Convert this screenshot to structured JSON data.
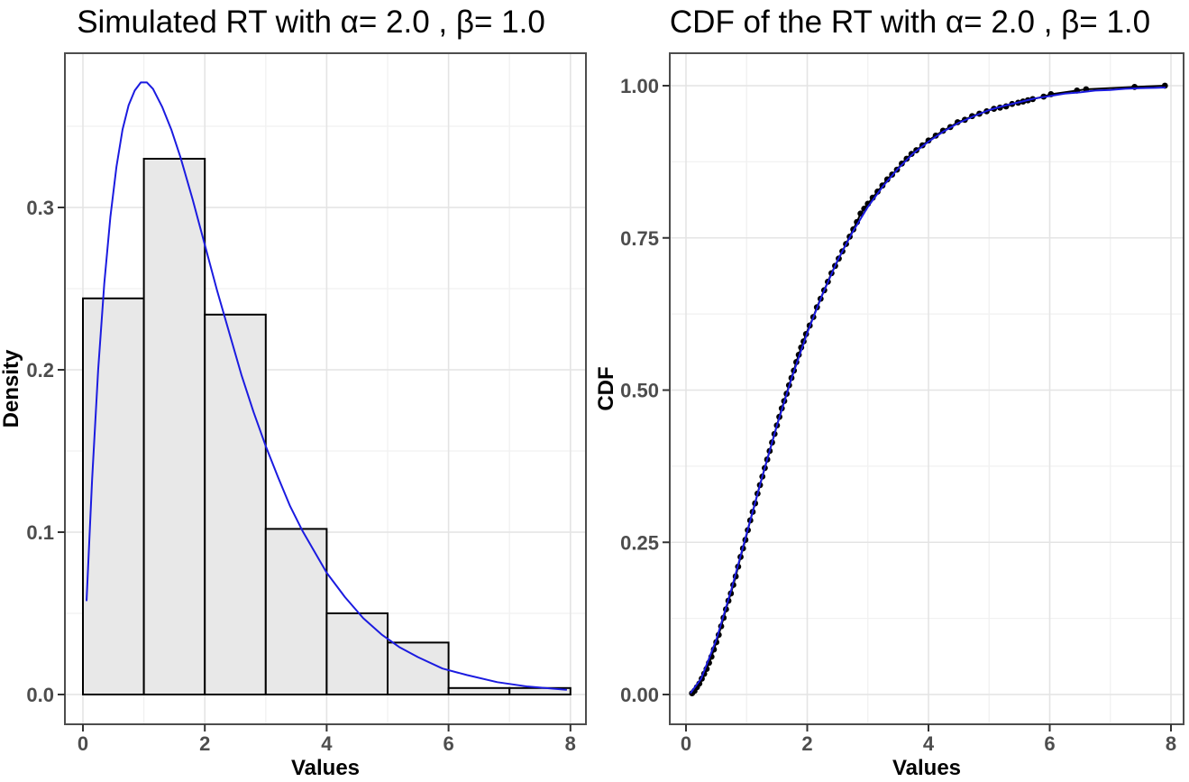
{
  "figure": {
    "kind": "R ggplot side-by-side figure",
    "background": "#ffffff"
  },
  "colors": {
    "curve_blue": "#1b1be0",
    "bar_fill": "#e8e8e8",
    "bar_stroke": "#000000",
    "ecdf_black": "#000000",
    "grid_major": "#e4e4e4",
    "grid_minor": "#f1f1f1",
    "panel_border": "#4d4d4d",
    "panel_bg": "#ffffff",
    "tick_mark": "#333333",
    "tick_label": "#4d4d4d",
    "axis_title": "#000000",
    "title_color": "#000000"
  },
  "chart_data": [
    {
      "type": "bar",
      "subtype": "histogram-with-density-curve",
      "title": "Simulated RT with α= 2.0 , β= 1.0",
      "xlabel": "Values",
      "ylabel": "Density",
      "xlim": [
        0,
        8
      ],
      "ylim": [
        0,
        0.377
      ],
      "x_ticks": [
        0,
        2,
        4,
        6,
        8
      ],
      "x_tick_labels": [
        "0",
        "2",
        "4",
        "6",
        "8"
      ],
      "x_minor": [
        1,
        3,
        5,
        7
      ],
      "y_ticks": [
        0.0,
        0.1,
        0.2,
        0.3
      ],
      "y_tick_labels": [
        "0.0",
        "0.1",
        "0.2",
        "0.3"
      ],
      "y_minor": [
        0.05,
        0.15,
        0.25,
        0.35
      ],
      "grid": true,
      "legend": "none",
      "bins": {
        "start": 0,
        "binwidth": 1,
        "categories": [
          "0-1",
          "1-2",
          "2-3",
          "3-4",
          "4-5",
          "5-6",
          "6-7",
          "7-8"
        ],
        "heights": [
          0.244,
          0.33,
          0.234,
          0.102,
          0.05,
          0.032,
          0.004,
          0.004
        ]
      },
      "density_curve": [
        [
          0.06,
          0.058
        ],
        [
          0.15,
          0.132
        ],
        [
          0.25,
          0.2
        ],
        [
          0.35,
          0.253
        ],
        [
          0.45,
          0.294
        ],
        [
          0.55,
          0.325
        ],
        [
          0.65,
          0.348
        ],
        [
          0.75,
          0.363
        ],
        [
          0.85,
          0.372
        ],
        [
          0.95,
          0.377
        ],
        [
          1.05,
          0.377
        ],
        [
          1.15,
          0.373
        ],
        [
          1.3,
          0.362
        ],
        [
          1.45,
          0.348
        ],
        [
          1.6,
          0.331
        ],
        [
          1.8,
          0.305
        ],
        [
          2.0,
          0.277
        ],
        [
          2.2,
          0.249
        ],
        [
          2.4,
          0.223
        ],
        [
          2.6,
          0.197
        ],
        [
          2.8,
          0.174
        ],
        [
          3.0,
          0.153
        ],
        [
          3.2,
          0.134
        ],
        [
          3.4,
          0.116
        ],
        [
          3.6,
          0.101
        ],
        [
          3.8,
          0.088
        ],
        [
          4.0,
          0.075
        ],
        [
          4.3,
          0.06
        ],
        [
          4.6,
          0.047
        ],
        [
          4.9,
          0.037
        ],
        [
          5.2,
          0.029
        ],
        [
          5.5,
          0.023
        ],
        [
          5.9,
          0.016
        ],
        [
          6.3,
          0.012
        ],
        [
          6.8,
          0.0076
        ],
        [
          7.3,
          0.0049
        ],
        [
          7.93,
          0.0029
        ]
      ]
    },
    {
      "type": "line",
      "subtype": "ecdf-with-theoretical-cdf",
      "title": "CDF of the RT with α= 2.0 , β= 1.0",
      "xlabel": "Values",
      "ylabel": "CDF",
      "xlim": [
        0,
        8
      ],
      "ylim": [
        0,
        1
      ],
      "x_ticks": [
        0,
        2,
        4,
        6,
        8
      ],
      "x_tick_labels": [
        "0",
        "2",
        "4",
        "6",
        "8"
      ],
      "x_minor": [
        1,
        3,
        5,
        7
      ],
      "y_ticks": [
        0.0,
        0.25,
        0.5,
        0.75,
        1.0
      ],
      "y_tick_labels": [
        "0.00",
        "0.25",
        "0.50",
        "0.75",
        "1.00"
      ],
      "y_minor": [
        0.125,
        0.375,
        0.625,
        0.875
      ],
      "grid": true,
      "legend": "none",
      "cdf_curve": [
        [
          0.08,
          0.003
        ],
        [
          0.25,
          0.026
        ],
        [
          0.5,
          0.09
        ],
        [
          0.75,
          0.173
        ],
        [
          1.0,
          0.264
        ],
        [
          1.25,
          0.355
        ],
        [
          1.5,
          0.442
        ],
        [
          1.75,
          0.522
        ],
        [
          2.0,
          0.594
        ],
        [
          2.25,
          0.657
        ],
        [
          2.5,
          0.713
        ],
        [
          2.75,
          0.76
        ],
        [
          3.0,
          0.801
        ],
        [
          3.25,
          0.835
        ],
        [
          3.5,
          0.864
        ],
        [
          3.75,
          0.889
        ],
        [
          4.0,
          0.908
        ],
        [
          4.25,
          0.925
        ],
        [
          4.5,
          0.939
        ],
        [
          4.75,
          0.95
        ],
        [
          5.0,
          0.96
        ],
        [
          5.25,
          0.967
        ],
        [
          5.5,
          0.973
        ],
        [
          5.75,
          0.979
        ],
        [
          6.0,
          0.983
        ],
        [
          6.25,
          0.987
        ],
        [
          6.5,
          0.989
        ],
        [
          6.75,
          0.992
        ],
        [
          7.0,
          0.993
        ],
        [
          7.25,
          0.995
        ],
        [
          7.5,
          0.996
        ],
        [
          7.75,
          0.9965
        ],
        [
          7.9,
          0.997
        ]
      ],
      "ecdf_points": [
        [
          0.1,
          0.002
        ],
        [
          0.14,
          0.006
        ],
        [
          0.18,
          0.012
        ],
        [
          0.22,
          0.018
        ],
        [
          0.26,
          0.026
        ],
        [
          0.3,
          0.034
        ],
        [
          0.34,
          0.042
        ],
        [
          0.38,
          0.052
        ],
        [
          0.42,
          0.062
        ],
        [
          0.46,
          0.074
        ],
        [
          0.5,
          0.086
        ],
        [
          0.54,
          0.098
        ],
        [
          0.58,
          0.112
        ],
        [
          0.62,
          0.126
        ],
        [
          0.66,
          0.14
        ],
        [
          0.7,
          0.154
        ],
        [
          0.74,
          0.166
        ],
        [
          0.78,
          0.18
        ],
        [
          0.82,
          0.194
        ],
        [
          0.86,
          0.21
        ],
        [
          0.9,
          0.226
        ],
        [
          0.94,
          0.24
        ],
        [
          0.98,
          0.254
        ],
        [
          1.02,
          0.27
        ],
        [
          1.06,
          0.286
        ],
        [
          1.1,
          0.3
        ],
        [
          1.14,
          0.314
        ],
        [
          1.18,
          0.33
        ],
        [
          1.22,
          0.344
        ],
        [
          1.26,
          0.358
        ],
        [
          1.3,
          0.372
        ],
        [
          1.34,
          0.386
        ],
        [
          1.38,
          0.4
        ],
        [
          1.42,
          0.414
        ],
        [
          1.46,
          0.428
        ],
        [
          1.5,
          0.442
        ],
        [
          1.54,
          0.456
        ],
        [
          1.58,
          0.47
        ],
        [
          1.62,
          0.482
        ],
        [
          1.66,
          0.494
        ],
        [
          1.7,
          0.508
        ],
        [
          1.74,
          0.52
        ],
        [
          1.78,
          0.532
        ],
        [
          1.82,
          0.546
        ],
        [
          1.86,
          0.558
        ],
        [
          1.9,
          0.57
        ],
        [
          1.94,
          0.58
        ],
        [
          1.98,
          0.592
        ],
        [
          2.04,
          0.606
        ],
        [
          2.1,
          0.62
        ],
        [
          2.16,
          0.636
        ],
        [
          2.22,
          0.65
        ],
        [
          2.28,
          0.664
        ],
        [
          2.34,
          0.678
        ],
        [
          2.4,
          0.692
        ],
        [
          2.46,
          0.704
        ],
        [
          2.52,
          0.716
        ],
        [
          2.58,
          0.728
        ],
        [
          2.64,
          0.74
        ],
        [
          2.7,
          0.752
        ],
        [
          2.76,
          0.764
        ],
        [
          2.82,
          0.776
        ],
        [
          2.88,
          0.79
        ],
        [
          2.94,
          0.798
        ],
        [
          3.0,
          0.806
        ],
        [
          3.08,
          0.816
        ],
        [
          3.16,
          0.826
        ],
        [
          3.24,
          0.836
        ],
        [
          3.32,
          0.846
        ],
        [
          3.4,
          0.854
        ],
        [
          3.48,
          0.862
        ],
        [
          3.56,
          0.872
        ],
        [
          3.64,
          0.88
        ],
        [
          3.72,
          0.888
        ],
        [
          3.8,
          0.894
        ],
        [
          3.9,
          0.902
        ],
        [
          4.0,
          0.91
        ],
        [
          4.12,
          0.918
        ],
        [
          4.24,
          0.926
        ],
        [
          4.36,
          0.932
        ],
        [
          4.48,
          0.94
        ],
        [
          4.6,
          0.944
        ],
        [
          4.72,
          0.95
        ],
        [
          4.84,
          0.954
        ],
        [
          4.96,
          0.958
        ],
        [
          5.08,
          0.962
        ],
        [
          5.18,
          0.964
        ],
        [
          5.28,
          0.966
        ],
        [
          5.38,
          0.97
        ],
        [
          5.48,
          0.972
        ],
        [
          5.56,
          0.974
        ],
        [
          5.64,
          0.976
        ],
        [
          5.72,
          0.978
        ],
        [
          5.9,
          0.982
        ],
        [
          6.02,
          0.986
        ],
        [
          6.45,
          0.992
        ],
        [
          6.6,
          0.994
        ],
        [
          7.4,
          0.998
        ],
        [
          7.9,
          1.0
        ]
      ]
    }
  ]
}
